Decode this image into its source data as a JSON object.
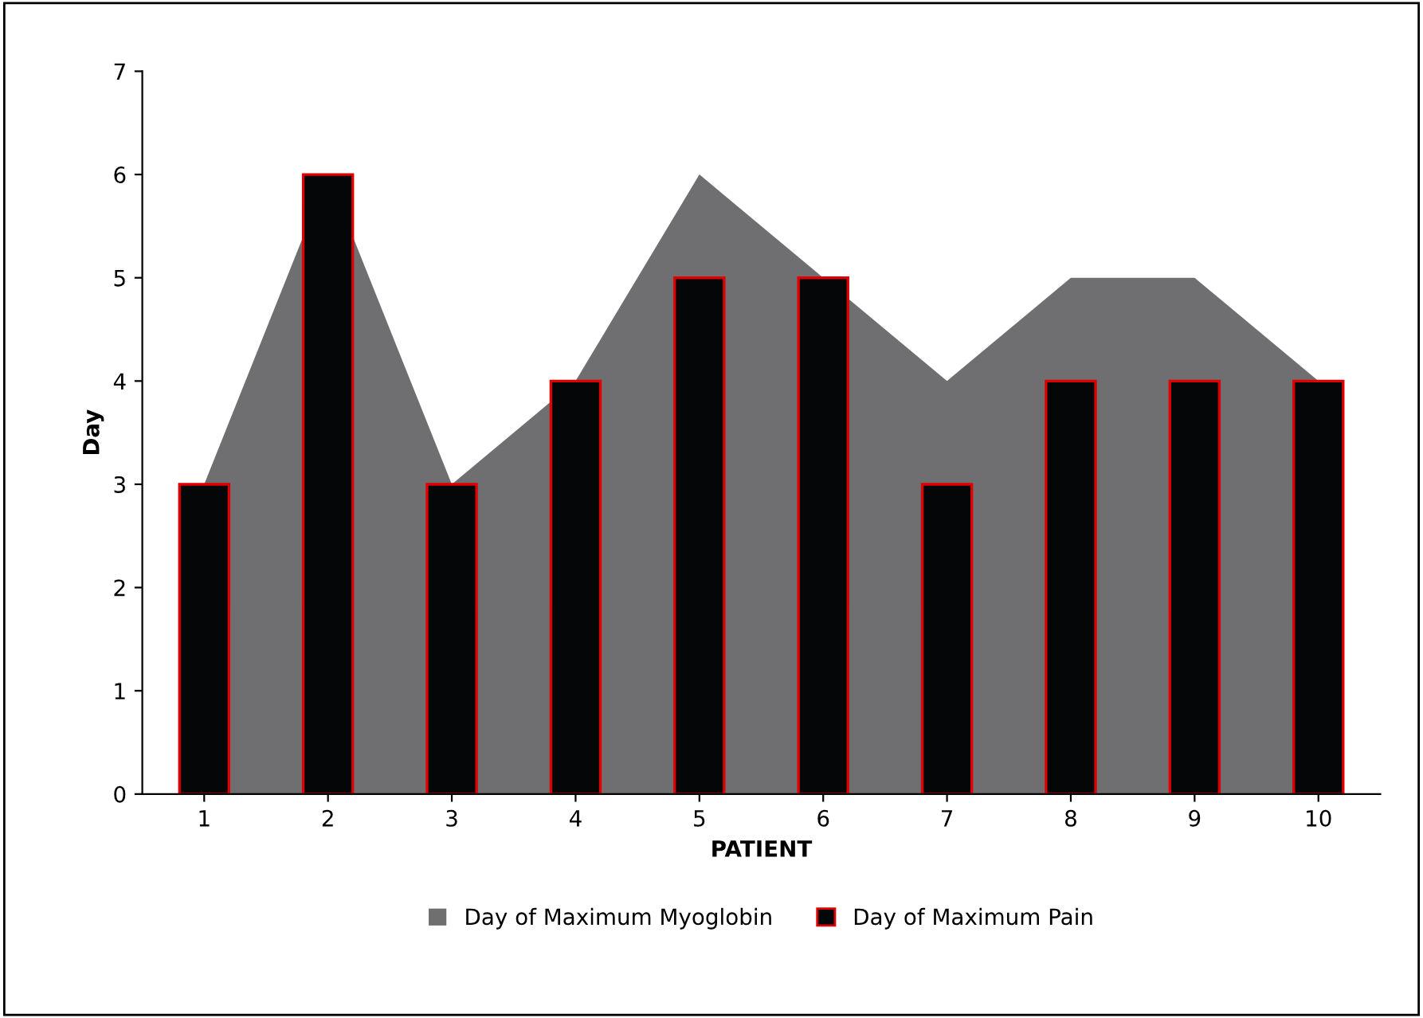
{
  "chart_data": {
    "type": "bar",
    "xlabel": "PATIENT",
    "ylabel": "Day",
    "categories": [
      "1",
      "2",
      "3",
      "4",
      "5",
      "6",
      "7",
      "8",
      "9",
      "10"
    ],
    "series": [
      {
        "name": "Day of Maximum Myoglobin",
        "type": "area",
        "color": "#6f6f71",
        "values": [
          3,
          6,
          3,
          4,
          6,
          5,
          4,
          5,
          5,
          4
        ]
      },
      {
        "name": "Day of Maximum Pain",
        "color": "#050608",
        "values": [
          3,
          6,
          3,
          4,
          5,
          5,
          3,
          4,
          4,
          4
        ]
      }
    ],
    "ylim": [
      0,
      7
    ],
    "yticks": [
      0,
      1,
      2,
      3,
      4,
      5,
      6,
      7
    ],
    "grid": false,
    "legend": "bottom"
  }
}
